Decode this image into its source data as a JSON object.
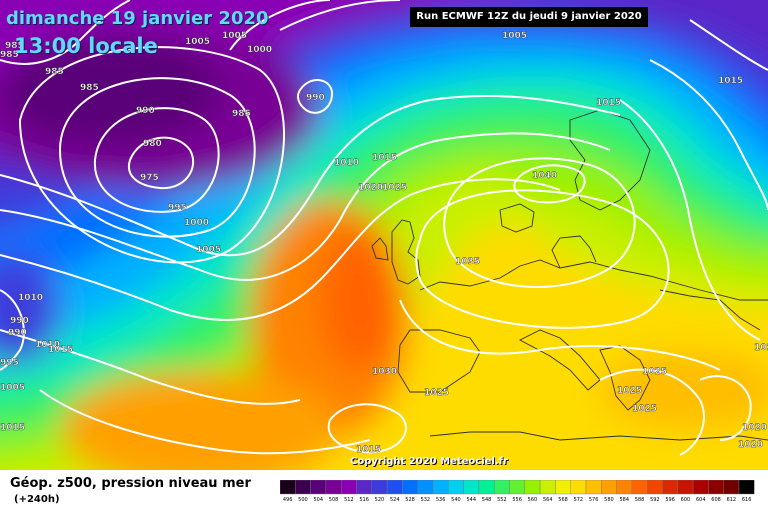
{
  "header": {
    "date": "dimanche 19 janvier 2020",
    "local_time": "13:00 locale",
    "run": "Run ECMWF 12Z du jeudi 9 janvier 2020"
  },
  "copyright": "Copyright 2020 Meteociel.fr",
  "legend": {
    "title": "Géop. z500, pression niveau mer",
    "lead_time": "(+240h)"
  },
  "color_scale": {
    "ticks": [
      "496",
      "500",
      "504",
      "508",
      "512",
      "516",
      "520",
      "524",
      "528",
      "532",
      "536",
      "540",
      "544",
      "548",
      "552",
      "556",
      "560",
      "564",
      "568",
      "572",
      "576",
      "580",
      "584",
      "588",
      "592",
      "596",
      "600",
      "604",
      "608",
      "612",
      "616"
    ],
    "colors": [
      "#1a001a",
      "#3c0050",
      "#5a0078",
      "#780094",
      "#8a00b4",
      "#5a28c8",
      "#3c3cdc",
      "#1e50f0",
      "#0070ff",
      "#0090ff",
      "#00b0ff",
      "#00d0f0",
      "#00e6c8",
      "#00f096",
      "#32f064",
      "#64f032",
      "#96f000",
      "#c8f000",
      "#f0f000",
      "#ffdc00",
      "#ffbe00",
      "#ffa000",
      "#ff8200",
      "#ff6400",
      "#f04600",
      "#dc2800",
      "#c81400",
      "#aa0000",
      "#8c0000",
      "#6e0000",
      "#000000"
    ]
  },
  "isobar_labels": [
    {
      "text": "1005"
    },
    {
      "text": "1005"
    },
    {
      "text": "1000"
    },
    {
      "text": "1005"
    },
    {
      "text": "985"
    },
    {
      "text": "985"
    },
    {
      "text": "990"
    },
    {
      "text": "985"
    },
    {
      "text": "980"
    },
    {
      "text": "975"
    },
    {
      "text": "985"
    },
    {
      "text": "990"
    },
    {
      "text": "1015"
    },
    {
      "text": "1010"
    },
    {
      "text": "1015"
    },
    {
      "text": "1020"
    },
    {
      "text": "1025"
    },
    {
      "text": "1040"
    },
    {
      "text": "995"
    },
    {
      "text": "1000"
    },
    {
      "text": "1005"
    },
    {
      "text": "1035"
    },
    {
      "text": "1010"
    },
    {
      "text": "990"
    },
    {
      "text": "1010"
    },
    {
      "text": "1015"
    },
    {
      "text": "995"
    },
    {
      "text": "1005"
    },
    {
      "text": "1015"
    },
    {
      "text": "1030"
    },
    {
      "text": "1025"
    },
    {
      "text": "1025"
    },
    {
      "text": "1025"
    },
    {
      "text": "1025"
    },
    {
      "text": "1025"
    },
    {
      "text": "1020"
    },
    {
      "text": "1020"
    },
    {
      "text": "1015"
    },
    {
      "text": "1015"
    },
    {
      "text": "990"
    },
    {
      "text": "985"
    }
  ]
}
